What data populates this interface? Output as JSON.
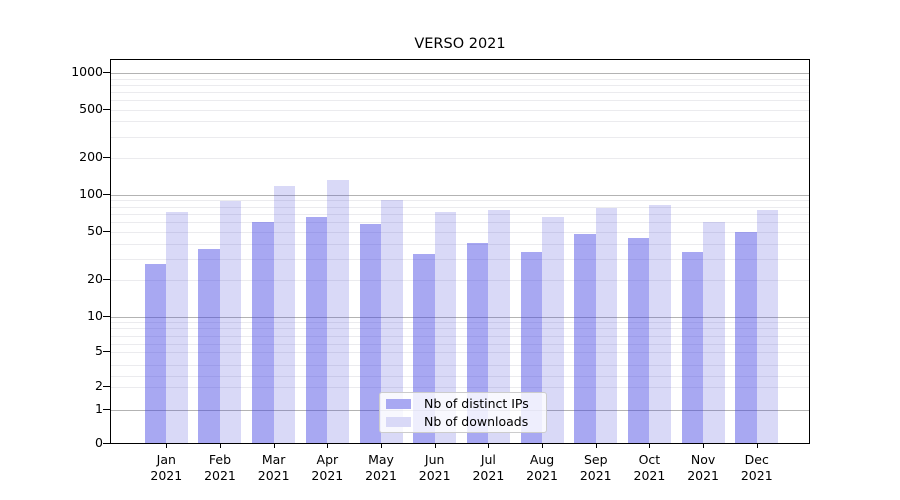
{
  "chart_data": {
    "type": "bar",
    "title": "VERSO 2021",
    "xlabel": "",
    "ylabel": "",
    "yscale": "symlog",
    "ylim": [
      0,
      1000
    ],
    "yticks": [
      1000,
      500,
      200,
      100,
      50,
      20,
      10,
      5,
      2,
      1,
      0
    ],
    "grid": true,
    "legend_position": "lower center, inside plot",
    "categories": [
      "Jan 2021",
      "Feb 2021",
      "Mar 2021",
      "Apr 2021",
      "May 2021",
      "Jun 2021",
      "Jul 2021",
      "Aug 2021",
      "Sep 2021",
      "Oct 2021",
      "Nov 2021",
      "Dec 2021"
    ],
    "series": [
      {
        "name": "Nb of distinct IPs",
        "color": "#a8a8f2",
        "values": [
          27,
          36,
          60,
          66,
          58,
          33,
          40,
          34,
          48,
          44,
          34,
          50
        ]
      },
      {
        "name": "Nb of downloads",
        "color": "#d9d9f7",
        "values": [
          73,
          89,
          118,
          133,
          91,
          73,
          75,
          66,
          78,
          83,
          60,
          75
        ]
      }
    ]
  },
  "colors": {
    "bar_ips": "#a8a8f2",
    "bar_downloads": "#d9d9f7",
    "bar_ips_rgba": "rgba(62,62,226,0.45)",
    "bar_downloads_rgba": "rgba(65,65,215,0.2)",
    "grid_major": "#b3b3b3",
    "grid_minor": "#ebebee",
    "spine": "#000000",
    "legend_border": "#cccccc",
    "background": "#ffffff",
    "text": "#000000"
  }
}
